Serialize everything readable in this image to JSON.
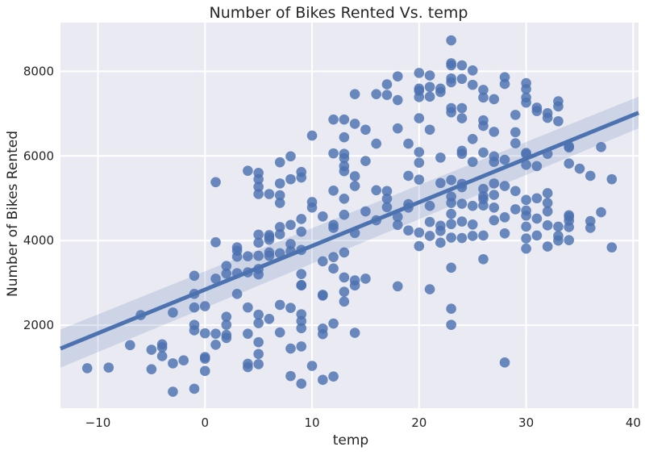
{
  "chart_data": {
    "type": "scatter",
    "title": "Number of Bikes Rented Vs. temp",
    "xlabel": "temp",
    "ylabel": "Number of Bikes Rented",
    "xlim": [
      -13.5,
      40.5
    ],
    "ylim": [
      40,
      9150
    ],
    "xticks": [
      -10,
      0,
      10,
      20,
      30,
      40
    ],
    "yticks": [
      2000,
      4000,
      6000,
      8000
    ],
    "grid": true,
    "background_color": "#eaeaf2",
    "grid_color": "#ffffff",
    "point_color": "#4c72b0",
    "regression": {
      "x": [
        -13.5,
        40.5
      ],
      "y": [
        1450,
        7020
      ],
      "ci_low": [
        1000,
        6650
      ],
      "ci_high": [
        1900,
        7400
      ]
    },
    "points": [
      [
        -11,
        985
      ],
      [
        -9,
        1000
      ],
      [
        -7,
        1530
      ],
      [
        -6,
        2240
      ],
      [
        -5,
        1420
      ],
      [
        -5,
        960
      ],
      [
        -4,
        1550
      ],
      [
        -4,
        1480
      ],
      [
        -4,
        1270
      ],
      [
        -3,
        2300
      ],
      [
        -3,
        1100
      ],
      [
        -3,
        430
      ],
      [
        -2,
        1170
      ],
      [
        -1,
        3170
      ],
      [
        -1,
        2740
      ],
      [
        -1,
        2420
      ],
      [
        -1,
        2010
      ],
      [
        -1,
        1880
      ],
      [
        -1,
        500
      ],
      [
        0,
        2450
      ],
      [
        0,
        1810
      ],
      [
        0,
        1250
      ],
      [
        0,
        1210
      ],
      [
        0,
        920
      ],
      [
        1,
        5380
      ],
      [
        1,
        3960
      ],
      [
        1,
        3100
      ],
      [
        1,
        1800
      ],
      [
        1,
        1540
      ],
      [
        2,
        3400
      ],
      [
        2,
        3220
      ],
      [
        2,
        2200
      ],
      [
        2,
        2010
      ],
      [
        2,
        1770
      ],
      [
        2,
        1700
      ],
      [
        3,
        3840
      ],
      [
        3,
        3760
      ],
      [
        3,
        3620
      ],
      [
        3,
        3230
      ],
      [
        3,
        2740
      ],
      [
        4,
        5650
      ],
      [
        4,
        3630
      ],
      [
        4,
        3250
      ],
      [
        4,
        2420
      ],
      [
        4,
        1800
      ],
      [
        4,
        1090
      ],
      [
        4,
        1010
      ],
      [
        5,
        5600
      ],
      [
        5,
        5450
      ],
      [
        5,
        5270
      ],
      [
        5,
        5100
      ],
      [
        5,
        4140
      ],
      [
        5,
        3950
      ],
      [
        5,
        3640
      ],
      [
        5,
        3330
      ],
      [
        5,
        3200
      ],
      [
        5,
        2250
      ],
      [
        5,
        2050
      ],
      [
        5,
        1600
      ],
      [
        5,
        1320
      ],
      [
        5,
        1080
      ],
      [
        6,
        5100
      ],
      [
        6,
        4130
      ],
      [
        6,
        4080
      ],
      [
        6,
        4020
      ],
      [
        6,
        3720
      ],
      [
        6,
        3640
      ],
      [
        6,
        2150
      ],
      [
        7,
        5850
      ],
      [
        7,
        5350
      ],
      [
        7,
        5070
      ],
      [
        7,
        4890
      ],
      [
        7,
        4320
      ],
      [
        7,
        4150
      ],
      [
        7,
        3700
      ],
      [
        7,
        2480
      ],
      [
        7,
        1830
      ],
      [
        8,
        5990
      ],
      [
        8,
        5450
      ],
      [
        8,
        4370
      ],
      [
        8,
        3920
      ],
      [
        8,
        3750
      ],
      [
        8,
        2410
      ],
      [
        8,
        1450
      ],
      [
        8,
        800
      ],
      [
        9,
        5620
      ],
      [
        9,
        5490
      ],
      [
        9,
        4510
      ],
      [
        9,
        4210
      ],
      [
        9,
        3780
      ],
      [
        9,
        3210
      ],
      [
        9,
        2940
      ],
      [
        9,
        2950
      ],
      [
        9,
        2260
      ],
      [
        9,
        2100
      ],
      [
        9,
        1930
      ],
      [
        9,
        1500
      ],
      [
        9,
        620
      ],
      [
        10,
        6480
      ],
      [
        10,
        4910
      ],
      [
        10,
        4780
      ],
      [
        10,
        1040
      ],
      [
        11,
        4570
      ],
      [
        11,
        3510
      ],
      [
        11,
        2720
      ],
      [
        11,
        2700
      ],
      [
        11,
        1920
      ],
      [
        11,
        1790
      ],
      [
        11,
        710
      ],
      [
        12,
        6860
      ],
      [
        12,
        6060
      ],
      [
        12,
        5180
      ],
      [
        12,
        4370
      ],
      [
        12,
        4300
      ],
      [
        12,
        3610
      ],
      [
        12,
        3340
      ],
      [
        12,
        2040
      ],
      [
        12,
        790
      ],
      [
        13,
        6860
      ],
      [
        13,
        6440
      ],
      [
        13,
        6050
      ],
      [
        13,
        5950
      ],
      [
        13,
        5760
      ],
      [
        13,
        5640
      ],
      [
        13,
        4990
      ],
      [
        13,
        4610
      ],
      [
        13,
        3720
      ],
      [
        13,
        3130
      ],
      [
        13,
        2790
      ],
      [
        13,
        2560
      ],
      [
        14,
        7460
      ],
      [
        14,
        6760
      ],
      [
        14,
        5520
      ],
      [
        14,
        5290
      ],
      [
        14,
        4180
      ],
      [
        14,
        3060
      ],
      [
        14,
        2940
      ],
      [
        14,
        1820
      ],
      [
        15,
        6620
      ],
      [
        15,
        5880
      ],
      [
        15,
        4690
      ],
      [
        15,
        3100
      ],
      [
        16,
        7460
      ],
      [
        16,
        6290
      ],
      [
        16,
        5190
      ],
      [
        16,
        4480
      ],
      [
        17,
        7690
      ],
      [
        17,
        7440
      ],
      [
        17,
        5170
      ],
      [
        17,
        4990
      ],
      [
        17,
        4790
      ],
      [
        18,
        7880
      ],
      [
        18,
        7320
      ],
      [
        18,
        6650
      ],
      [
        18,
        4560
      ],
      [
        18,
        4370
      ],
      [
        18,
        2920
      ],
      [
        19,
        6290
      ],
      [
        19,
        5530
      ],
      [
        19,
        4860
      ],
      [
        19,
        4780
      ],
      [
        19,
        4240
      ],
      [
        20,
        7960
      ],
      [
        20,
        7590
      ],
      [
        20,
        7540
      ],
      [
        20,
        7390
      ],
      [
        20,
        6890
      ],
      [
        20,
        6090
      ],
      [
        20,
        5840
      ],
      [
        20,
        5440
      ],
      [
        20,
        4190
      ],
      [
        20,
        3870
      ],
      [
        21,
        7900
      ],
      [
        21,
        7630
      ],
      [
        21,
        7400
      ],
      [
        21,
        6620
      ],
      [
        21,
        4820
      ],
      [
        21,
        4440
      ],
      [
        21,
        4110
      ],
      [
        21,
        2850
      ],
      [
        22,
        7510
      ],
      [
        22,
        7590
      ],
      [
        22,
        5960
      ],
      [
        22,
        5360
      ],
      [
        22,
        4350
      ],
      [
        22,
        4230
      ],
      [
        22,
        3950
      ],
      [
        23,
        8730
      ],
      [
        23,
        8190
      ],
      [
        23,
        8140
      ],
      [
        23,
        7830
      ],
      [
        23,
        7740
      ],
      [
        23,
        7130
      ],
      [
        23,
        7030
      ],
      [
        23,
        5430
      ],
      [
        23,
        5040
      ],
      [
        23,
        4890
      ],
      [
        23,
        4630
      ],
      [
        23,
        4390
      ],
      [
        23,
        4070
      ],
      [
        23,
        3360
      ],
      [
        23,
        2390
      ],
      [
        23,
        2010
      ],
      [
        24,
        8140
      ],
      [
        24,
        7820
      ],
      [
        24,
        7130
      ],
      [
        24,
        6890
      ],
      [
        24,
        6120
      ],
      [
        24,
        6050
      ],
      [
        24,
        5340
      ],
      [
        24,
        5260
      ],
      [
        24,
        4870
      ],
      [
        24,
        4450
      ],
      [
        24,
        4060
      ],
      [
        25,
        8020
      ],
      [
        25,
        7680
      ],
      [
        25,
        6400
      ],
      [
        25,
        5860
      ],
      [
        25,
        4820
      ],
      [
        25,
        4380
      ],
      [
        25,
        4110
      ],
      [
        26,
        7560
      ],
      [
        26,
        7380
      ],
      [
        26,
        6840
      ],
      [
        26,
        6710
      ],
      [
        26,
        6080
      ],
      [
        26,
        5220
      ],
      [
        26,
        5050
      ],
      [
        26,
        4980
      ],
      [
        26,
        4830
      ],
      [
        26,
        4120
      ],
      [
        26,
        3560
      ],
      [
        27,
        7340
      ],
      [
        27,
        6570
      ],
      [
        27,
        5990
      ],
      [
        27,
        5860
      ],
      [
        27,
        5350
      ],
      [
        27,
        5080
      ],
      [
        27,
        4780
      ],
      [
        27,
        4480
      ],
      [
        28,
        7860
      ],
      [
        28,
        7700
      ],
      [
        28,
        5910
      ],
      [
        28,
        5290
      ],
      [
        28,
        4550
      ],
      [
        28,
        4170
      ],
      [
        28,
        1120
      ],
      [
        29,
        6970
      ],
      [
        29,
        6560
      ],
      [
        29,
        6300
      ],
      [
        29,
        5170
      ],
      [
        29,
        4740
      ],
      [
        30,
        7720
      ],
      [
        30,
        7580
      ],
      [
        30,
        7380
      ],
      [
        30,
        7260
      ],
      [
        30,
        6070
      ],
      [
        30,
        6040
      ],
      [
        30,
        5790
      ],
      [
        30,
        4960
      ],
      [
        30,
        4710
      ],
      [
        30,
        4590
      ],
      [
        30,
        4330
      ],
      [
        30,
        4050
      ],
      [
        30,
        3810
      ],
      [
        31,
        7140
      ],
      [
        31,
        7060
      ],
      [
        31,
        5760
      ],
      [
        31,
        5000
      ],
      [
        31,
        4520
      ],
      [
        31,
        4120
      ],
      [
        32,
        7010
      ],
      [
        32,
        6900
      ],
      [
        32,
        6050
      ],
      [
        32,
        5120
      ],
      [
        32,
        4890
      ],
      [
        32,
        4690
      ],
      [
        32,
        4360
      ],
      [
        32,
        3860
      ],
      [
        33,
        7290
      ],
      [
        33,
        7170
      ],
      [
        33,
        6820
      ],
      [
        33,
        4330
      ],
      [
        33,
        4110
      ],
      [
        33,
        4000
      ],
      [
        34,
        6230
      ],
      [
        34,
        6200
      ],
      [
        34,
        5820
      ],
      [
        34,
        4600
      ],
      [
        34,
        4560
      ],
      [
        34,
        4470
      ],
      [
        34,
        4320
      ],
      [
        34,
        4010
      ],
      [
        35,
        5700
      ],
      [
        36,
        5530
      ],
      [
        36,
        4460
      ],
      [
        36,
        4300
      ],
      [
        37,
        6210
      ],
      [
        37,
        4670
      ],
      [
        38,
        5450
      ],
      [
        38,
        3840
      ]
    ]
  }
}
